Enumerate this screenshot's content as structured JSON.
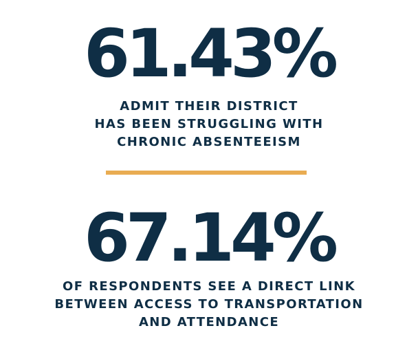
{
  "stats": [
    {
      "value": "61.43%",
      "caption_lines": [
        "ADMIT THEIR DISTRICT",
        "HAS BEEN STRUGGLING WITH",
        "CHRONIC ABSENTEEISM"
      ]
    },
    {
      "value": "67.14%",
      "caption_lines": [
        "OF RESPONDENTS SEE A DIRECT LINK",
        "BETWEEN ACCESS TO TRANSPORTATION",
        "AND ATTENDANCE"
      ]
    }
  ],
  "colors": {
    "text": "#0f2e45",
    "divider": "#e9ac52",
    "background": "#ffffff"
  }
}
